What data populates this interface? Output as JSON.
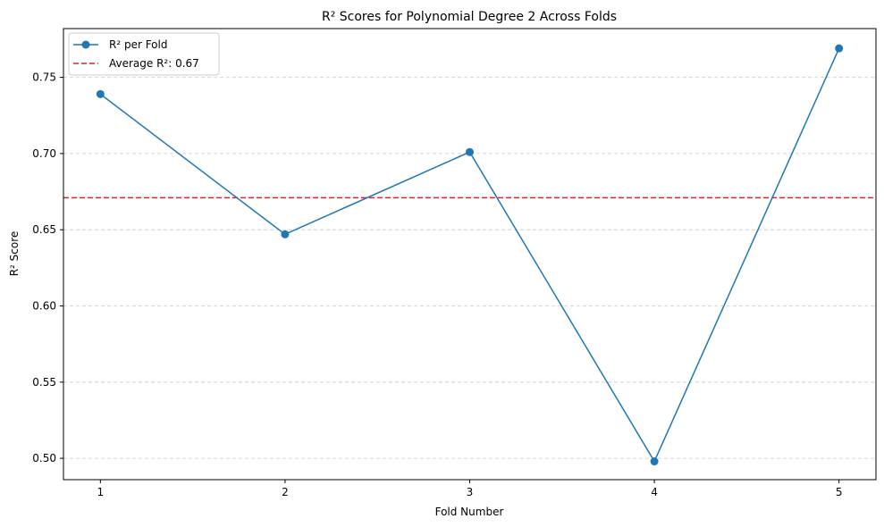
{
  "chart_data": {
    "type": "line",
    "title": "R² Scores for Polynomial Degree 2 Across Folds",
    "xlabel": "Fold Number",
    "ylabel": "R² Score",
    "x": [
      1,
      2,
      3,
      4,
      5
    ],
    "series": [
      {
        "name": "R² per Fold",
        "values": [
          0.739,
          0.647,
          0.701,
          0.498,
          0.769
        ],
        "color": "#1f77b4",
        "marker": "circle"
      }
    ],
    "reference_lines": [
      {
        "name": "Average R²: 0.67",
        "y": 0.671,
        "color": "#d62728",
        "style": "dashed"
      }
    ],
    "xlim": [
      0.8,
      5.2
    ],
    "ylim": [
      0.486,
      0.782
    ],
    "xticks": [
      1,
      2,
      3,
      4,
      5
    ],
    "yticks": [
      0.5,
      0.55,
      0.6,
      0.65,
      0.7,
      0.75
    ],
    "ytick_labels": [
      "0.50",
      "0.55",
      "0.60",
      "0.65",
      "0.70",
      "0.75"
    ],
    "grid": "y-dashed",
    "legend": "top-left"
  }
}
